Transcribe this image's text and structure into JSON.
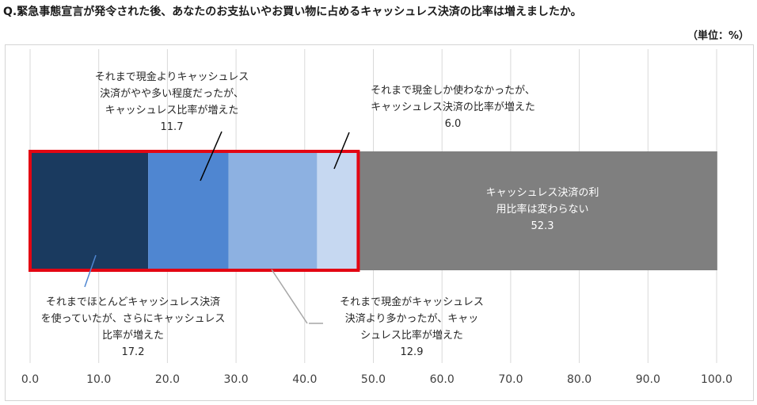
{
  "title": "Q.緊急事態宣言が発令された後、あなたのお支払いやお買い物に占めるキャッシュレス決済の比率は増えましたか。",
  "unit_label": "（単位：%）",
  "colors": {
    "seg1": "#1a3a5f",
    "seg2": "#4f86d1",
    "seg3": "#8db1e1",
    "seg4": "#c6d8f1",
    "seg5": "#7f7f7f",
    "highlight": "#e30613",
    "grid": "#d9d9d9",
    "tick": "#333333"
  },
  "chart_data": {
    "type": "bar",
    "orientation": "horizontal",
    "stacked": true,
    "xlim": [
      0,
      100
    ],
    "xticks": [
      "0.0",
      "10.0",
      "20.0",
      "30.0",
      "40.0",
      "50.0",
      "60.0",
      "70.0",
      "80.0",
      "90.0",
      "100.0"
    ],
    "grid": true,
    "segments": [
      {
        "label": [
          "それまでほとんどキャッシュレス決済",
          "を使っていたが、さらにキャッシュレス",
          "比率が増えた"
        ],
        "value": 17.2
      },
      {
        "label": [
          "それまで現金よりキャッシュレス",
          "決済がやや多い程度だったが、",
          "キャッシュレス比率が増えた"
        ],
        "value": 11.7
      },
      {
        "label": [
          "それまで現金がキャッシュレス",
          "決済より多かったが、キャッ",
          "シュレス比率が増えた"
        ],
        "value": 12.9
      },
      {
        "label": [
          "それまで現金しか使わなかったが、",
          "キャッシュレス決済の比率が増えた"
        ],
        "value": 6.0
      },
      {
        "label": [
          "キャッシュレス決済の利",
          "用比率は変わらない"
        ],
        "value": 52.3
      }
    ],
    "highlight_box_covers_segments": [
      0,
      1,
      2,
      3
    ]
  }
}
